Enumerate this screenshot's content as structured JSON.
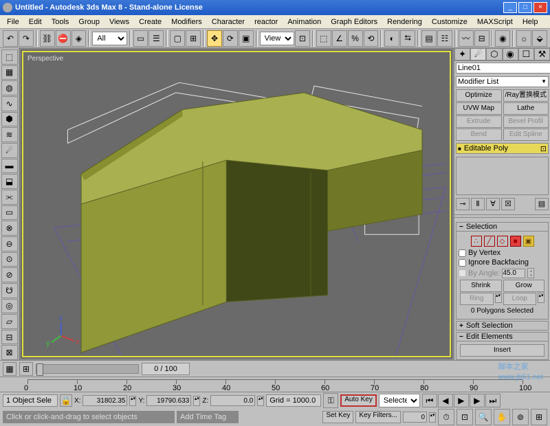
{
  "title": "Untitled - Autodesk 3ds Max 8 - Stand-alone License",
  "menus": [
    "File",
    "Edit",
    "Tools",
    "Group",
    "Views",
    "Create",
    "Modifiers",
    "Character",
    "reactor",
    "Animation",
    "Graph Editors",
    "Rendering",
    "Customize",
    "MAXScript",
    "Help"
  ],
  "toolbar_sel1": "All",
  "toolbar_sel2": "View",
  "viewport_label": "Perspective",
  "timeline_label": "0 / 100",
  "rightpanel": {
    "object_name": "Line01",
    "modlist": "Modifier List",
    "btns": [
      [
        "Optimize",
        "/Ray置换模式"
      ],
      [
        "UVW Map",
        "Lathe"
      ],
      [
        "Extrude",
        "Bevel Profil"
      ],
      [
        "Bend",
        "Edit Spline"
      ]
    ],
    "modstack": "Editable Poly",
    "sel_header": "Selection",
    "by_vertex": "By Vertex",
    "ignore_bf": "Ignore Backfacing",
    "by_angle": "By Angle:",
    "angle_val": "45.0",
    "shrink": "Shrink",
    "grow": "Grow",
    "ring": "Ring",
    "loop": "Loop",
    "polysel": "0 Polygons Selected",
    "softsel": "Soft Selection",
    "editel": "Edit Elements",
    "insert": "Insert"
  },
  "status": {
    "objsel": "1 Object Sele",
    "x": "31802.35",
    "y": "19790.633",
    "z": "0.0",
    "grid": "Grid = 1000.0",
    "autokey": "Auto Key",
    "setkey": "Set Key",
    "selected": "Selected",
    "keyfilters": "Key Filters...",
    "prompt": "Click or click-and-drag to select objects",
    "addtag": "Add Time Tag"
  },
  "ticks": [
    0,
    10,
    20,
    30,
    40,
    50,
    60,
    70,
    80,
    90,
    100
  ],
  "colors": {
    "model_top": "#a8b050",
    "model_front": "#909838",
    "model_side": "#404818",
    "wire": "#e8e8e8",
    "ground": "#6a4ac0"
  },
  "watermark": {
    "main": "脚本之家",
    "sub": "www.jb51.net"
  }
}
